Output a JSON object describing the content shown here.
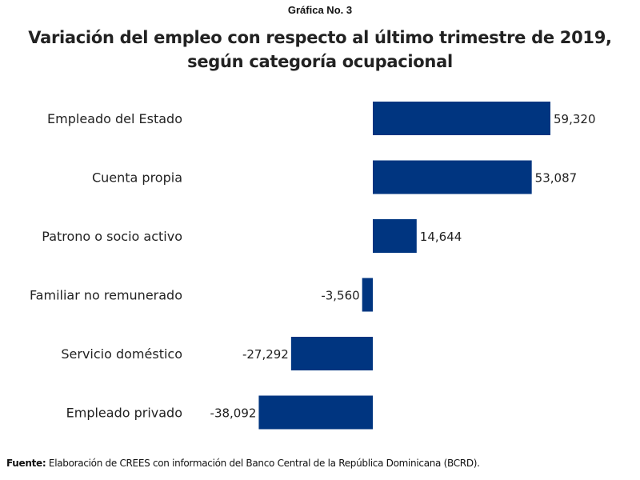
{
  "header": {
    "figure_number": "Gráfica No. 3"
  },
  "footer": {
    "source_label": "Fuente:",
    "source_text": " Elaboración de CREES con información del Banco Central de la República Dominicana (BCRD)."
  },
  "chart_data": {
    "type": "bar",
    "orientation": "horizontal",
    "title": "Variación del empleo con respecto al último trimestre de 2019, según categoría ocupacional",
    "title_lines": [
      "Variación del empleo con respecto al último trimestre de 2019,",
      "según categoría ocupacional"
    ],
    "xlabel": "",
    "ylabel": "",
    "grid": false,
    "legend": "none",
    "bar_color": "#003580",
    "categories": [
      "Empleado del Estado",
      "Cuenta propia",
      "Patrono o socio activo",
      "Familiar no remunerado",
      "Servicio doméstico",
      "Empleado privado"
    ],
    "values": [
      59320,
      53087,
      14644,
      -3560,
      -27292,
      -38092
    ],
    "value_labels": [
      "59,320",
      "53,087",
      "14,644",
      "-3,560",
      "-27,292",
      "-38,092"
    ],
    "xlim": [
      -40000,
      60000
    ]
  }
}
